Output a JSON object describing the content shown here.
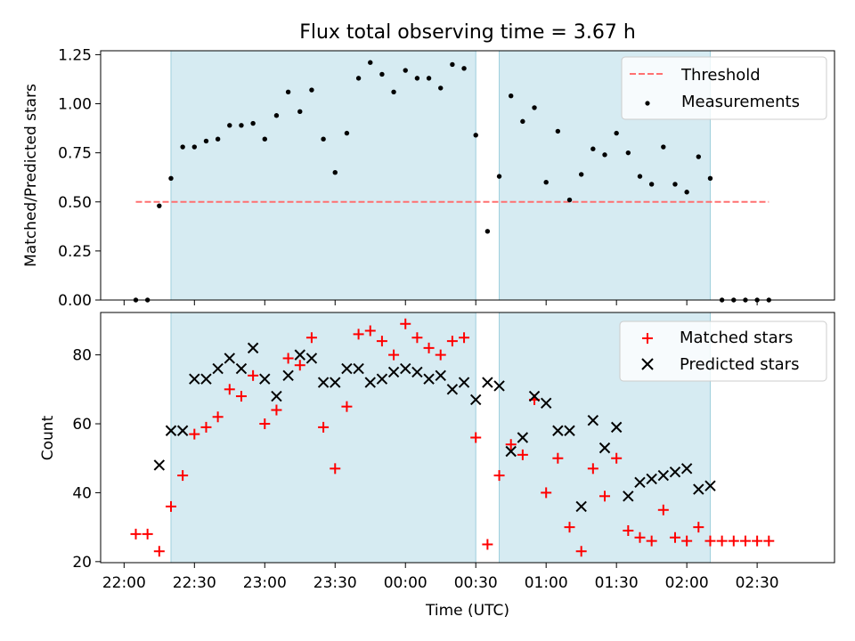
{
  "chart_data": {
    "type": "scatter",
    "title": "Flux total observing time = 3.67 h",
    "xlabel": "Time (UTC)",
    "x_unit": "minutes after 22:00 UTC",
    "x_ticks": [
      {
        "t": 0,
        "label": "22:00"
      },
      {
        "t": 30,
        "label": "22:30"
      },
      {
        "t": 60,
        "label": "23:00"
      },
      {
        "t": 90,
        "label": "23:30"
      },
      {
        "t": 120,
        "label": "00:00"
      },
      {
        "t": 150,
        "label": "00:30"
      },
      {
        "t": 180,
        "label": "01:00"
      },
      {
        "t": 210,
        "label": "01:30"
      },
      {
        "t": 240,
        "label": "02:00"
      },
      {
        "t": 270,
        "label": "02:30"
      }
    ],
    "xlim": [
      -10,
      303
    ],
    "shaded_intervals": [
      [
        20,
        150
      ],
      [
        160,
        250
      ]
    ],
    "shade_color": "#add8e6",
    "top": {
      "ylabel": "Matched/Predicted stars",
      "ylim": [
        0,
        1.27
      ],
      "y_ticks": [
        {
          "v": 0,
          "label": "0.00"
        },
        {
          "v": 0.25,
          "label": "0.25"
        },
        {
          "v": 0.5,
          "label": "0.50"
        },
        {
          "v": 0.75,
          "label": "0.75"
        },
        {
          "v": 1.0,
          "label": "1.00"
        },
        {
          "v": 1.25,
          "label": "1.25"
        }
      ],
      "threshold": {
        "name": "Threshold",
        "value": 0.5,
        "x_range": [
          5,
          275
        ],
        "color": "#ff7070"
      },
      "measurements": {
        "name": "Measurements",
        "color": "#000000",
        "points": [
          [
            5,
            0.0
          ],
          [
            10,
            0.0
          ],
          [
            15,
            0.48
          ],
          [
            20,
            0.62
          ],
          [
            25,
            0.78
          ],
          [
            30,
            0.78
          ],
          [
            35,
            0.81
          ],
          [
            40,
            0.82
          ],
          [
            45,
            0.89
          ],
          [
            50,
            0.89
          ],
          [
            55,
            0.9
          ],
          [
            60,
            0.82
          ],
          [
            65,
            0.94
          ],
          [
            70,
            1.06
          ],
          [
            75,
            0.96
          ],
          [
            80,
            1.07
          ],
          [
            85,
            0.82
          ],
          [
            90,
            0.65
          ],
          [
            95,
            0.85
          ],
          [
            100,
            1.13
          ],
          [
            105,
            1.21
          ],
          [
            110,
            1.15
          ],
          [
            115,
            1.06
          ],
          [
            120,
            1.17
          ],
          [
            125,
            1.13
          ],
          [
            130,
            1.13
          ],
          [
            135,
            1.08
          ],
          [
            140,
            1.2
          ],
          [
            145,
            1.18
          ],
          [
            150,
            0.84
          ],
          [
            155,
            0.35
          ],
          [
            160,
            0.63
          ],
          [
            165,
            1.04
          ],
          [
            170,
            0.91
          ],
          [
            175,
            0.98
          ],
          [
            180,
            0.6
          ],
          [
            185,
            0.86
          ],
          [
            190,
            0.51
          ],
          [
            195,
            0.64
          ],
          [
            200,
            0.77
          ],
          [
            205,
            0.74
          ],
          [
            210,
            0.85
          ],
          [
            215,
            0.75
          ],
          [
            220,
            0.63
          ],
          [
            225,
            0.59
          ],
          [
            230,
            0.78
          ],
          [
            235,
            0.59
          ],
          [
            240,
            0.55
          ],
          [
            245,
            0.73
          ],
          [
            250,
            0.62
          ],
          [
            255,
            0.0
          ],
          [
            260,
            0.0
          ],
          [
            265,
            0.0
          ],
          [
            270,
            0.0
          ],
          [
            275,
            0.0
          ]
        ]
      },
      "legend": "top-right"
    },
    "bottom": {
      "ylabel": "Count",
      "ylim": [
        19.7,
        92.3
      ],
      "y_ticks": [
        {
          "v": 20,
          "label": "20"
        },
        {
          "v": 40,
          "label": "40"
        },
        {
          "v": 60,
          "label": "60"
        },
        {
          "v": 80,
          "label": "80"
        }
      ],
      "series": [
        {
          "name": "Matched stars",
          "marker": "plus",
          "color": "#ff0000",
          "points": [
            [
              5,
              28
            ],
            [
              10,
              28
            ],
            [
              15,
              23
            ],
            [
              20,
              36
            ],
            [
              25,
              45
            ],
            [
              30,
              57
            ],
            [
              35,
              59
            ],
            [
              40,
              62
            ],
            [
              45,
              70
            ],
            [
              50,
              68
            ],
            [
              55,
              74
            ],
            [
              60,
              60
            ],
            [
              65,
              64
            ],
            [
              70,
              79
            ],
            [
              75,
              77
            ],
            [
              80,
              85
            ],
            [
              85,
              59
            ],
            [
              90,
              47
            ],
            [
              95,
              65
            ],
            [
              100,
              86
            ],
            [
              105,
              87
            ],
            [
              110,
              84
            ],
            [
              115,
              80
            ],
            [
              120,
              89
            ],
            [
              125,
              85
            ],
            [
              130,
              82
            ],
            [
              135,
              80
            ],
            [
              140,
              84
            ],
            [
              145,
              85
            ],
            [
              150,
              56
            ],
            [
              155,
              25
            ],
            [
              160,
              45
            ],
            [
              165,
              54
            ],
            [
              170,
              51
            ],
            [
              175,
              67
            ],
            [
              180,
              40
            ],
            [
              185,
              50
            ],
            [
              190,
              30
            ],
            [
              195,
              23
            ],
            [
              200,
              47
            ],
            [
              205,
              39
            ],
            [
              210,
              50
            ],
            [
              215,
              29
            ],
            [
              220,
              27
            ],
            [
              225,
              26
            ],
            [
              230,
              35
            ],
            [
              235,
              27
            ],
            [
              240,
              26
            ],
            [
              245,
              30
            ],
            [
              250,
              26
            ],
            [
              255,
              26
            ],
            [
              260,
              26
            ],
            [
              265,
              26
            ],
            [
              270,
              26
            ],
            [
              275,
              26
            ]
          ]
        },
        {
          "name": "Predicted stars",
          "marker": "x",
          "color": "#000000",
          "points": [
            [
              15,
              48
            ],
            [
              20,
              58
            ],
            [
              25,
              58
            ],
            [
              30,
              73
            ],
            [
              35,
              73
            ],
            [
              40,
              76
            ],
            [
              45,
              79
            ],
            [
              50,
              76
            ],
            [
              55,
              82
            ],
            [
              60,
              73
            ],
            [
              65,
              68
            ],
            [
              70,
              74
            ],
            [
              75,
              80
            ],
            [
              80,
              79
            ],
            [
              85,
              72
            ],
            [
              90,
              72
            ],
            [
              95,
              76
            ],
            [
              100,
              76
            ],
            [
              105,
              72
            ],
            [
              110,
              73
            ],
            [
              115,
              75
            ],
            [
              120,
              76
            ],
            [
              125,
              75
            ],
            [
              130,
              73
            ],
            [
              135,
              74
            ],
            [
              140,
              70
            ],
            [
              145,
              72
            ],
            [
              150,
              67
            ],
            [
              155,
              72
            ],
            [
              160,
              71
            ],
            [
              165,
              52
            ],
            [
              170,
              56
            ],
            [
              175,
              68
            ],
            [
              180,
              66
            ],
            [
              185,
              58
            ],
            [
              190,
              58
            ],
            [
              195,
              36
            ],
            [
              200,
              61
            ],
            [
              205,
              53
            ],
            [
              210,
              59
            ],
            [
              215,
              39
            ],
            [
              220,
              43
            ],
            [
              225,
              44
            ],
            [
              230,
              45
            ],
            [
              235,
              46
            ],
            [
              240,
              47
            ],
            [
              245,
              41
            ],
            [
              250,
              42
            ]
          ]
        }
      ],
      "legend": "top-right"
    }
  }
}
